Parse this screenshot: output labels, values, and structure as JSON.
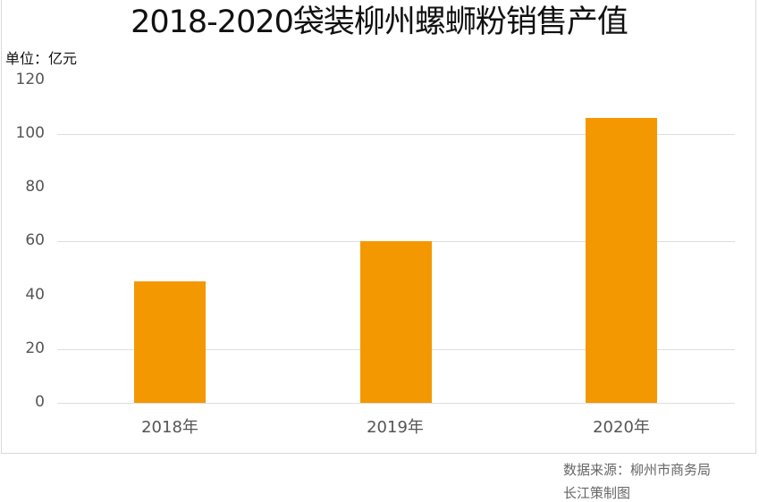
{
  "title": "2018-2020袋装柳州螺蛳粉销售产值",
  "unit_label": "单位：亿元",
  "y_ticks": [
    "120",
    "100",
    "80",
    "60",
    "40",
    "20",
    "0"
  ],
  "x_labels": [
    "2018年",
    "2019年",
    "2020年"
  ],
  "footer": {
    "source": "数据来源：柳州市商务局",
    "credit": "长江策制图"
  },
  "colors": {
    "bar": "#F39800",
    "grid": "#DEDEDE",
    "frame": "#D9D9D9"
  },
  "chart_data": {
    "type": "bar",
    "title": "2018-2020袋装柳州螺蛳粉销售产值",
    "xlabel": "",
    "ylabel": "单位：亿元",
    "categories": [
      "2018年",
      "2019年",
      "2020年"
    ],
    "values": [
      45,
      60,
      105.6
    ],
    "ylim": [
      0,
      120
    ],
    "yticks": [
      0,
      20,
      40,
      60,
      80,
      100,
      120
    ],
    "grid": true,
    "legend": null,
    "annotations": [
      "数据来源：柳州市商务局",
      "长江策制图"
    ]
  }
}
